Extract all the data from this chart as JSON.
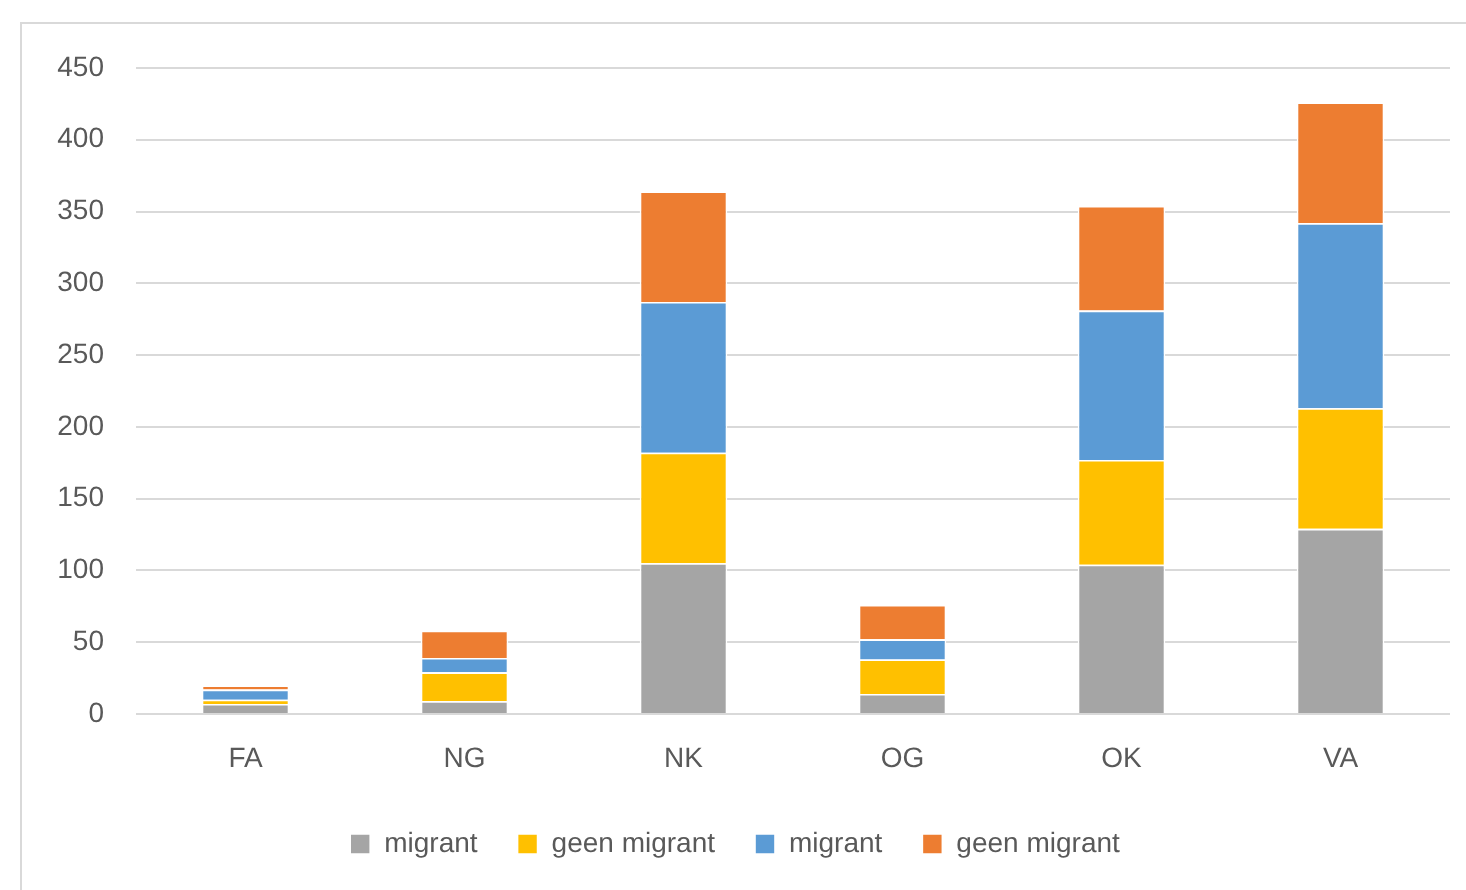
{
  "chart_data": {
    "type": "bar",
    "categories": [
      "FA",
      "NG",
      "NK",
      "OG",
      "OK",
      "VA"
    ],
    "series": [
      {
        "name": "migrant",
        "color": "#a5a5a5",
        "values": [
          7,
          9,
          105,
          14,
          104,
          129
        ]
      },
      {
        "name": "geen migrant",
        "color": "#ffc000",
        "values": [
          3,
          20,
          77,
          24,
          73,
          84
        ]
      },
      {
        "name": "migrant",
        "color": "#5b9bd5",
        "values": [
          7,
          10,
          105,
          14,
          104,
          129
        ]
      },
      {
        "name": "geen migrant",
        "color": "#ed7d31",
        "values": [
          3,
          19,
          77,
          24,
          73,
          84
        ]
      }
    ],
    "stacked": true,
    "ylim": [
      0,
      450
    ],
    "yticks": [
      0,
      50,
      100,
      150,
      200,
      250,
      300,
      350,
      400,
      450
    ],
    "grid": "y",
    "legend": "bottom"
  }
}
